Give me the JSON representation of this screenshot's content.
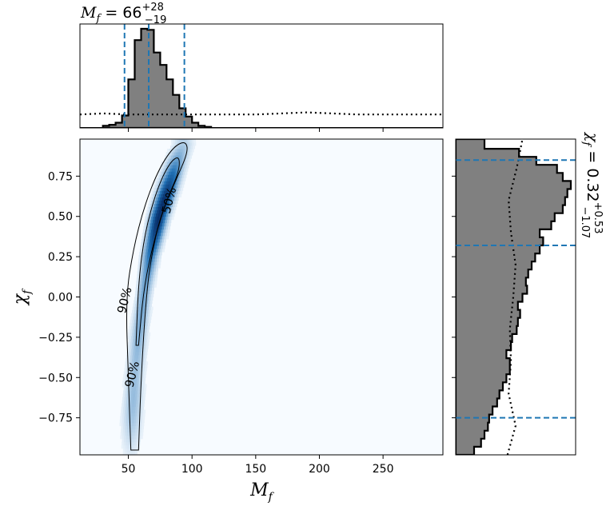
{
  "colors": {
    "histogram_fill": "#808080",
    "histogram_edge": "#000000",
    "interval_line": "#1f77b4",
    "density_low": "#f7fbff",
    "density_high": "#08306b",
    "contour": "#000000"
  },
  "chart_data": [
    {
      "id": "top-marginal",
      "type": "histogram",
      "title": {
        "symbol": "M",
        "subscript": "f",
        "median": "66",
        "upper_error": "+28",
        "lower_error": "−19"
      },
      "xlim": [
        12,
        297
      ],
      "bin_edges": [
        30,
        35,
        40,
        45,
        50,
        55,
        60,
        65,
        70,
        75,
        80,
        85,
        90,
        95,
        100,
        105,
        110,
        115
      ],
      "counts": [
        0.02,
        0.03,
        0.05,
        0.12,
        0.47,
        0.85,
        0.96,
        0.95,
        0.73,
        0.61,
        0.47,
        0.32,
        0.19,
        0.11,
        0.05,
        0.02,
        0.01
      ],
      "prior_dotted": {
        "x": [
          12,
          30,
          50,
          70,
          90,
          110,
          130,
          150,
          170,
          190,
          210,
          230,
          250,
          270,
          297
        ],
        "y": [
          0.13,
          0.14,
          0.13,
          0.13,
          0.13,
          0.13,
          0.13,
          0.13,
          0.14,
          0.15,
          0.14,
          0.13,
          0.13,
          0.13,
          0.13
        ]
      },
      "interval_lines": [
        47,
        66,
        94
      ]
    },
    {
      "id": "joint-density",
      "type": "heatmap",
      "xlabel": {
        "symbol": "M",
        "subscript": "f"
      },
      "ylabel": {
        "symbol": "χ",
        "subscript": "f"
      },
      "xlim": [
        12,
        297
      ],
      "ylim": [
        -0.98,
        0.98
      ],
      "x_ticks": [
        "50",
        "100",
        "150",
        "200",
        "250"
      ],
      "x_tick_values": [
        50,
        100,
        150,
        200,
        250
      ],
      "y_ticks": [
        "−0.75",
        "−0.50",
        "−0.25",
        "0.00",
        "0.25",
        "0.50",
        "0.75"
      ],
      "y_tick_values": [
        -0.75,
        -0.5,
        -0.25,
        0,
        0.25,
        0.5,
        0.75
      ],
      "ridge": {
        "y": [
          -0.95,
          -0.75,
          -0.5,
          -0.25,
          0,
          0.25,
          0.5,
          0.7,
          0.85,
          0.95
        ],
        "x": [
          52,
          53,
          55,
          58,
          62,
          67,
          74,
          82,
          88,
          93
        ]
      },
      "contours": [
        {
          "level": "90%",
          "points": [
            [
              52,
              -0.95
            ],
            [
              50,
              -0.5
            ],
            [
              48,
              0
            ],
            [
              54,
              0.3
            ],
            [
              62,
              0.55
            ],
            [
              73,
              0.78
            ],
            [
              85,
              0.93
            ],
            [
              95,
              0.97
            ],
            [
              97,
              0.9
            ],
            [
              87,
              0.72
            ],
            [
              75,
              0.5
            ],
            [
              68,
              0.25
            ],
            [
              64,
              0
            ],
            [
              60,
              -0.5
            ],
            [
              58,
              -0.95
            ]
          ],
          "label_positions": [
            [
              47,
              -0.02
            ],
            [
              53,
              -0.48
            ]
          ]
        },
        {
          "level": "50%",
          "points": [
            [
              56,
              -0.3
            ],
            [
              58,
              0.1
            ],
            [
              63,
              0.4
            ],
            [
              72,
              0.66
            ],
            [
              82,
              0.83
            ],
            [
              90,
              0.88
            ],
            [
              90,
              0.78
            ],
            [
              80,
              0.6
            ],
            [
              70,
              0.35
            ],
            [
              62,
              0.05
            ],
            [
              58,
              -0.3
            ]
          ],
          "label_positions": [
            [
              82,
              0.6
            ]
          ]
        }
      ]
    },
    {
      "id": "right-marginal",
      "type": "histogram",
      "orientation": "horizontal",
      "title": {
        "symbol": "χ",
        "subscript": "f",
        "median": "0.32",
        "upper_error": "+0.53",
        "lower_error": "−1.07"
      },
      "ylim": [
        -0.98,
        0.98
      ],
      "bin_edges": [
        -0.98,
        -0.93,
        -0.88,
        -0.83,
        -0.78,
        -0.73,
        -0.68,
        -0.63,
        -0.58,
        -0.53,
        -0.48,
        -0.43,
        -0.38,
        -0.33,
        -0.28,
        -0.23,
        -0.18,
        -0.13,
        -0.08,
        -0.03,
        0.02,
        0.07,
        0.12,
        0.17,
        0.22,
        0.27,
        0.32,
        0.37,
        0.42,
        0.47,
        0.52,
        0.57,
        0.62,
        0.67,
        0.72,
        0.77,
        0.82,
        0.87,
        0.92,
        0.98
      ],
      "counts": [
        0.16,
        0.22,
        0.25,
        0.28,
        0.29,
        0.32,
        0.36,
        0.38,
        0.41,
        0.44,
        0.47,
        0.47,
        0.44,
        0.48,
        0.49,
        0.53,
        0.54,
        0.56,
        0.54,
        0.58,
        0.62,
        0.61,
        0.63,
        0.66,
        0.69,
        0.73,
        0.76,
        0.73,
        0.83,
        0.86,
        0.93,
        0.95,
        0.97,
        1.0,
        0.93,
        0.88,
        0.7,
        0.55,
        0.25
      ],
      "prior_dotted": {
        "y": [
          -0.98,
          -0.8,
          -0.6,
          -0.4,
          -0.2,
          0,
          0.2,
          0.4,
          0.6,
          0.8,
          0.98
        ],
        "x": [
          0.45,
          0.52,
          0.46,
          0.48,
          0.47,
          0.5,
          0.52,
          0.48,
          0.46,
          0.53,
          0.58
        ]
      },
      "interval_lines": [
        -0.75,
        0.32,
        0.85
      ]
    }
  ]
}
